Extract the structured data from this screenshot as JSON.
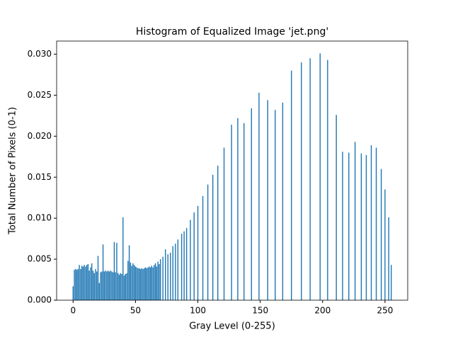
{
  "chart_data": {
    "type": "bar",
    "title": "Histogram of Equalized Image 'jet.png'",
    "x_label": "Gray Level (0-255)",
    "y_label": "Total Number of Pixels (0-1)",
    "color": "#1f77b4",
    "x": [
      0,
      1,
      2,
      3,
      4,
      5,
      6,
      7,
      8,
      9,
      10,
      11,
      12,
      13,
      14,
      15,
      16,
      17,
      18,
      19,
      20,
      21,
      22,
      23,
      24,
      25,
      26,
      27,
      28,
      29,
      30,
      31,
      32,
      33,
      34,
      35,
      36,
      37,
      38,
      39,
      40,
      41,
      42,
      43,
      44,
      45,
      46,
      47,
      48,
      49,
      50,
      51,
      52,
      53,
      54,
      55,
      56,
      57,
      58,
      59,
      60,
      61,
      62,
      63,
      64,
      65,
      66,
      67,
      68,
      69,
      70,
      72,
      74,
      76,
      78,
      80,
      82,
      84,
      87,
      89,
      91,
      94,
      97,
      100,
      104,
      108,
      112,
      116,
      121,
      127,
      132,
      137,
      143,
      149,
      156,
      162,
      168,
      175,
      183,
      190,
      198,
      204,
      211,
      216,
      221,
      226,
      231,
      235,
      239,
      243,
      247,
      250,
      253,
      255
    ],
    "values": [
      0.0017,
      0.0037,
      0.0038,
      0.0037,
      0.0038,
      0.0043,
      0.0038,
      0.0042,
      0.0041,
      0.0043,
      0.0041,
      0.0043,
      0.0044,
      0.0036,
      0.004,
      0.0045,
      0.0036,
      0.0033,
      0.0038,
      0.0035,
      0.0054,
      0.0021,
      0.0034,
      0.0035,
      0.0068,
      0.0035,
      0.0036,
      0.0035,
      0.0036,
      0.0035,
      0.0036,
      0.0035,
      0.0034,
      0.0071,
      0.0034,
      0.007,
      0.0033,
      0.0031,
      0.0033,
      0.0032,
      0.0101,
      0.003,
      0.0032,
      0.0033,
      0.0048,
      0.0067,
      0.0046,
      0.0042,
      0.0045,
      0.0043,
      0.0041,
      0.004,
      0.0039,
      0.0039,
      0.0038,
      0.0039,
      0.0038,
      0.0039,
      0.004,
      0.0039,
      0.004,
      0.0041,
      0.004,
      0.0042,
      0.004,
      0.0043,
      0.0045,
      0.0041,
      0.0047,
      0.0044,
      0.005,
      0.0053,
      0.0062,
      0.0056,
      0.0058,
      0.0066,
      0.0069,
      0.0074,
      0.0081,
      0.0084,
      0.0088,
      0.0098,
      0.0107,
      0.0115,
      0.0127,
      0.0141,
      0.0153,
      0.0164,
      0.0186,
      0.0214,
      0.0222,
      0.0216,
      0.0234,
      0.0253,
      0.0244,
      0.0232,
      0.0241,
      0.028,
      0.029,
      0.0295,
      0.0301,
      0.0293,
      0.0226,
      0.0181,
      0.018,
      0.0193,
      0.0179,
      0.0177,
      0.0189,
      0.0186,
      0.016,
      0.0135,
      0.0101,
      0.0043
    ],
    "xlim": [
      -13.2,
      268.2
    ],
    "ylim": [
      0,
      0.0316
    ],
    "xticks": [
      0,
      50,
      100,
      150,
      200,
      250
    ],
    "yticks": [
      {
        "value": 0,
        "label": "0.000"
      },
      {
        "value": 0.005,
        "label": "0.005"
      },
      {
        "value": 0.01,
        "label": "0.010"
      },
      {
        "value": 0.015,
        "label": "0.015"
      },
      {
        "value": 0.02,
        "label": "0.020"
      },
      {
        "value": 0.025,
        "label": "0.025"
      },
      {
        "value": 0.03,
        "label": "0.030"
      }
    ]
  }
}
